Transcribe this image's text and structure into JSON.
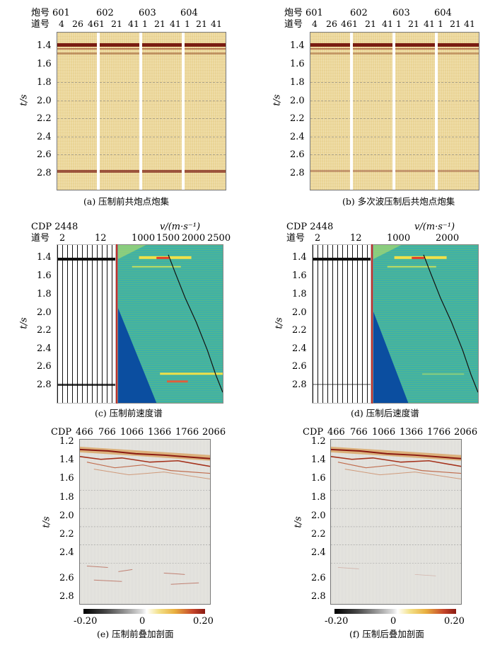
{
  "top_axes": {
    "shot_label": "炮号",
    "trace_label": "道号",
    "shot_numbers": [
      "601",
      "602",
      "603",
      "604"
    ],
    "trace_numbers": [
      "4",
      "26",
      "46",
      "1",
      "21",
      "41",
      "1",
      "21",
      "41",
      "1",
      "21",
      "41"
    ]
  },
  "time_axis": {
    "label": "t/s",
    "ticks_a": [
      "1.4",
      "1.6",
      "1.8",
      "2.0",
      "2.2",
      "2.4",
      "2.6",
      "2.8"
    ],
    "ticks_e": [
      "1.2",
      "1.4",
      "1.6",
      "1.8",
      "2.0",
      "2.2",
      "2.4",
      "2.6",
      "2.8"
    ]
  },
  "velocity": {
    "cdp_label": "CDP 2448",
    "trace_label": "道号",
    "trace_ticks": [
      "2",
      "12"
    ],
    "v_label": "v/(m·s⁻¹)",
    "v_ticks_c": [
      "1000",
      "1500",
      "2000",
      "2500"
    ],
    "v_ticks_d": [
      "1000",
      "2000"
    ]
  },
  "stack": {
    "cdp_label": "CDP",
    "cdp_ticks": [
      "466",
      "766",
      "1066",
      "1366",
      "1766",
      "2066"
    ],
    "colorbar": {
      "min": "-0.20",
      "mid": "0",
      "max": "0.20"
    }
  },
  "captions": {
    "a": "(a) 压制前共炮点炮集",
    "b": "(b) 多次波压制后共炮点炮集",
    "c": "(c) 压制前速度谱",
    "d": "(d) 压制后速度谱",
    "e": "(e) 压制前叠加剖面",
    "f": "(f) 压制后叠加剖面"
  },
  "colors": {
    "seismic_bg": "#ecd79a",
    "reflector_dark": "#7a1d12",
    "spectrum_bg": "#3fb0a8",
    "spectrum_wedge": "#0b4ea0",
    "stack_bg": "#e9e8e3"
  }
}
